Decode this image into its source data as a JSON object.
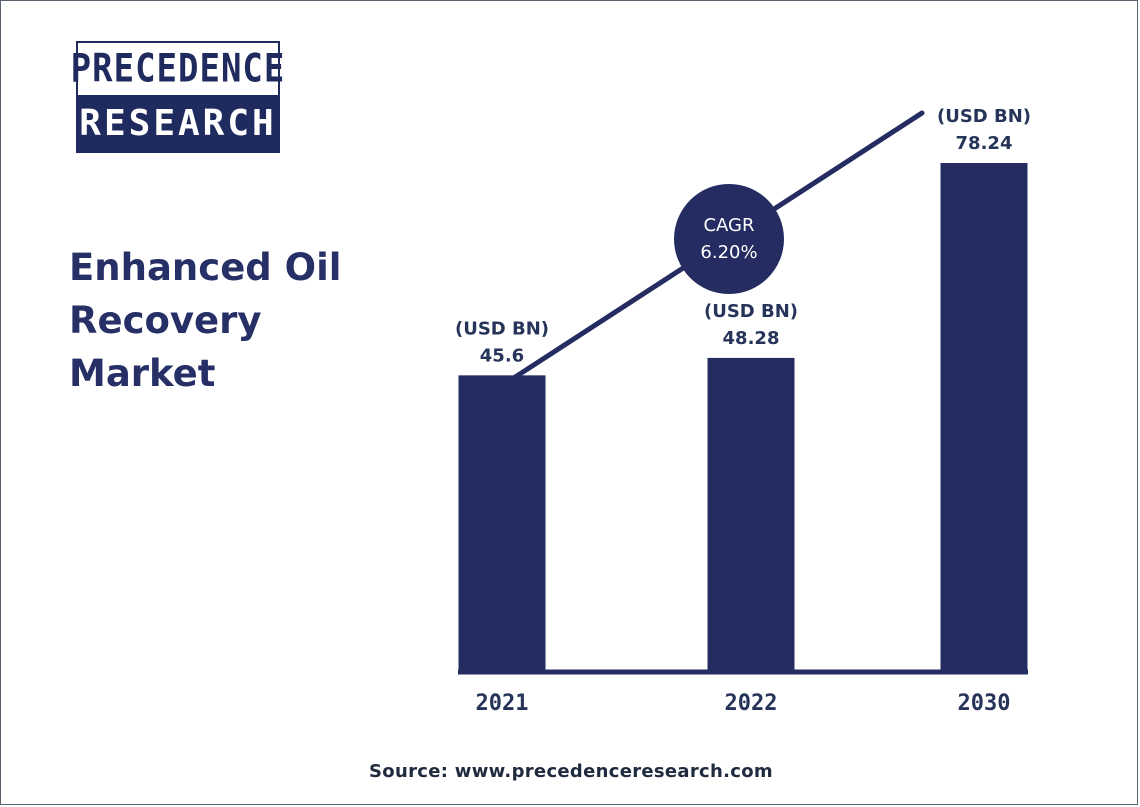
{
  "logo": {
    "line1": "PRECEDENCE",
    "line2": "RESEARCH"
  },
  "title_lines": [
    "Enhanced Oil",
    "Recovery",
    "Market"
  ],
  "source": "Source: www.precedenceresearch.com",
  "colors": {
    "bar": "#252c62",
    "text_dark": "#262f66",
    "value_text": "#27345a",
    "background": "#ffffff"
  },
  "chart_data": {
    "type": "bar",
    "title": "Enhanced Oil Recovery Market",
    "categories": [
      "2021",
      "2022",
      "2030"
    ],
    "values": [
      45.6,
      48.28,
      78.24
    ],
    "value_labels": [
      "45.6",
      "48.28",
      "78.24"
    ],
    "unit_label": "(USD BN)",
    "cagr_label": "CAGR",
    "cagr_value": "6.20%",
    "xlabel": "",
    "ylabel": "",
    "ylim": [
      0,
      78.24
    ],
    "grid": false,
    "legend": "none"
  }
}
